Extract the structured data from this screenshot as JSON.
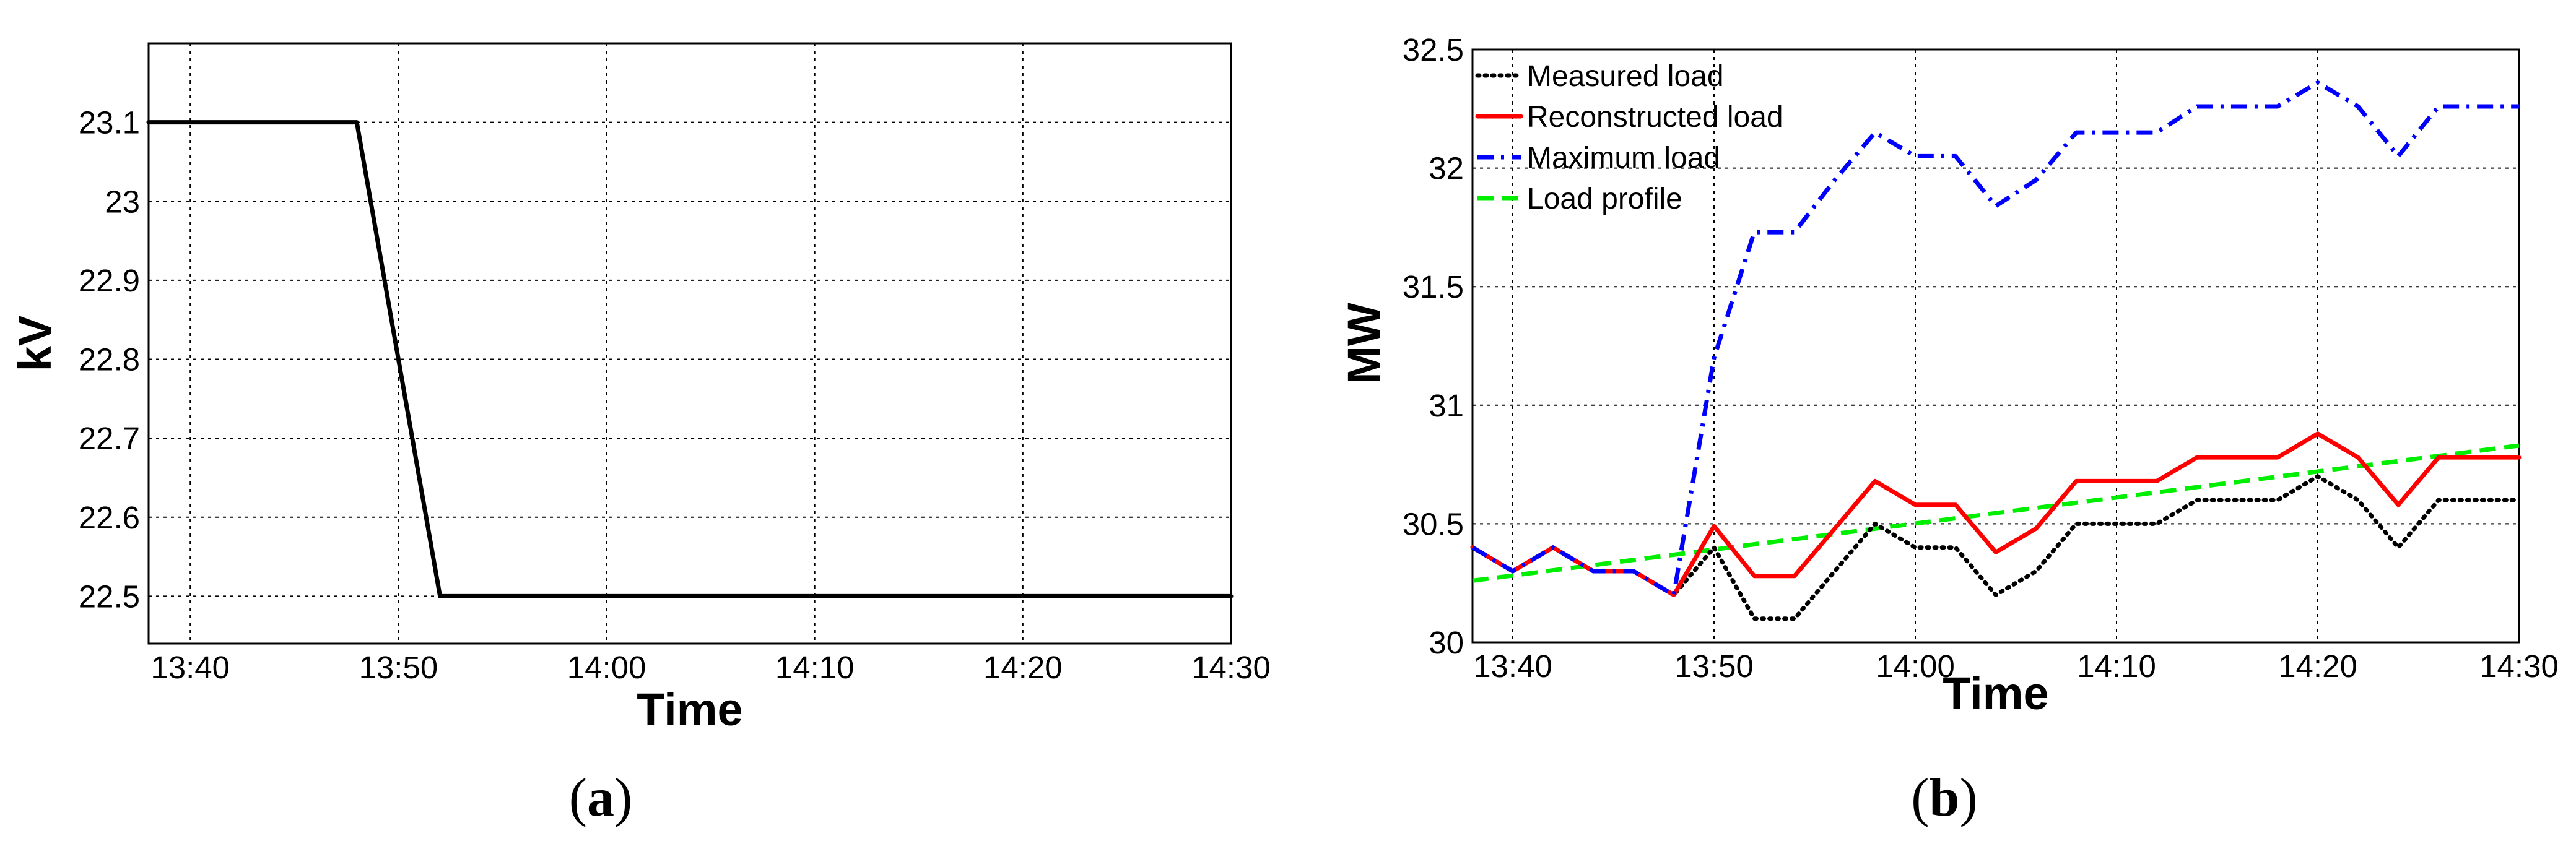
{
  "chart_data": [
    {
      "type": "line",
      "panel": {
        "prefix": "(",
        "letter": "a",
        "suffix": ")"
      },
      "title": "",
      "xlabel": "Time",
      "ylabel": "kV",
      "x_ticks": [
        "13:40",
        "13:50",
        "14:00",
        "14:10",
        "14:20",
        "14:30"
      ],
      "y_ticks": [
        "22.5",
        "22.6",
        "22.7",
        "22.8",
        "22.9",
        "23",
        "23.1"
      ],
      "xlim": [
        "13:38",
        "14:30"
      ],
      "ylim": [
        22.44,
        23.2
      ],
      "grid": true,
      "legend": null,
      "series": [
        {
          "color": "#000000",
          "style": "solid",
          "points": [
            [
              "13:38",
              23.1
            ],
            [
              "13:48",
              23.1
            ],
            [
              "13:52",
              22.5
            ],
            [
              "14:30",
              22.5
            ]
          ]
        }
      ]
    },
    {
      "type": "line",
      "panel": {
        "prefix": "(",
        "letter": "b",
        "suffix": ")"
      },
      "title": "",
      "xlabel": "Time",
      "ylabel": "MW",
      "x_ticks": [
        "13:40",
        "13:50",
        "14:00",
        "14:10",
        "14:20",
        "14:30"
      ],
      "y_ticks": [
        "30",
        "30.5",
        "31",
        "31.5",
        "32",
        "32.5"
      ],
      "xlim": [
        "13:38",
        "14:30"
      ],
      "ylim": [
        30,
        32.5
      ],
      "grid": true,
      "legend": "top-left",
      "series": [
        {
          "name": "Measured load",
          "color": "#000000",
          "style": "dotted",
          "points": [
            [
              "13:38",
              30.4
            ],
            [
              "13:40",
              30.3
            ],
            [
              "13:42",
              30.4
            ],
            [
              "13:44",
              30.3
            ],
            [
              "13:46",
              30.3
            ],
            [
              "13:48",
              30.2
            ],
            [
              "13:50",
              30.4
            ],
            [
              "13:52",
              30.1
            ],
            [
              "13:54",
              30.1
            ],
            [
              "13:56",
              30.3
            ],
            [
              "13:58",
              30.5
            ],
            [
              "14:00",
              30.4
            ],
            [
              "14:02",
              30.4
            ],
            [
              "14:04",
              30.2
            ],
            [
              "14:06",
              30.3
            ],
            [
              "14:08",
              30.5
            ],
            [
              "14:10",
              30.5
            ],
            [
              "14:12",
              30.5
            ],
            [
              "14:14",
              30.6
            ],
            [
              "14:16",
              30.6
            ],
            [
              "14:18",
              30.6
            ],
            [
              "14:20",
              30.7
            ],
            [
              "14:22",
              30.6
            ],
            [
              "14:24",
              30.4
            ],
            [
              "14:26",
              30.6
            ],
            [
              "14:28",
              30.6
            ],
            [
              "14:30",
              30.6
            ]
          ]
        },
        {
          "name": "Reconstructed load",
          "color": "#ff0000",
          "style": "solid",
          "points": [
            [
              "13:38",
              30.4
            ],
            [
              "13:40",
              30.3
            ],
            [
              "13:42",
              30.4
            ],
            [
              "13:44",
              30.3
            ],
            [
              "13:46",
              30.3
            ],
            [
              "13:48",
              30.2
            ],
            [
              "13:50",
              30.49
            ],
            [
              "13:52",
              30.28
            ],
            [
              "13:54",
              30.28
            ],
            [
              "13:56",
              30.48
            ],
            [
              "13:58",
              30.68
            ],
            [
              "14:00",
              30.58
            ],
            [
              "14:02",
              30.58
            ],
            [
              "14:04",
              30.38
            ],
            [
              "14:06",
              30.48
            ],
            [
              "14:08",
              30.68
            ],
            [
              "14:10",
              30.68
            ],
            [
              "14:12",
              30.68
            ],
            [
              "14:14",
              30.78
            ],
            [
              "14:16",
              30.78
            ],
            [
              "14:18",
              30.78
            ],
            [
              "14:20",
              30.88
            ],
            [
              "14:22",
              30.78
            ],
            [
              "14:24",
              30.58
            ],
            [
              "14:26",
              30.78
            ],
            [
              "14:28",
              30.78
            ],
            [
              "14:30",
              30.78
            ]
          ]
        },
        {
          "name": "Maximum load",
          "color": "#0000ff",
          "style": "dashdot",
          "points": [
            [
              "13:38",
              30.4
            ],
            [
              "13:40",
              30.3
            ],
            [
              "13:42",
              30.4
            ],
            [
              "13:44",
              30.3
            ],
            [
              "13:46",
              30.3
            ],
            [
              "13:48",
              30.2
            ],
            [
              "13:50",
              31.2
            ],
            [
              "13:52",
              31.73
            ],
            [
              "13:54",
              31.73
            ],
            [
              "13:56",
              31.95
            ],
            [
              "13:58",
              32.15
            ],
            [
              "14:00",
              32.05
            ],
            [
              "14:02",
              32.05
            ],
            [
              "14:04",
              31.84
            ],
            [
              "14:06",
              31.95
            ],
            [
              "14:08",
              32.15
            ],
            [
              "14:10",
              32.15
            ],
            [
              "14:12",
              32.15
            ],
            [
              "14:14",
              32.26
            ],
            [
              "14:16",
              32.26
            ],
            [
              "14:18",
              32.26
            ],
            [
              "14:20",
              32.36
            ],
            [
              "14:22",
              32.26
            ],
            [
              "14:24",
              32.05
            ],
            [
              "14:26",
              32.26
            ],
            [
              "14:28",
              32.26
            ],
            [
              "14:30",
              32.26
            ]
          ]
        },
        {
          "name": "Load profile",
          "color": "#00ee00",
          "style": "dashed",
          "points": [
            [
              "13:38",
              30.26
            ],
            [
              "14:30",
              30.83
            ]
          ]
        }
      ]
    }
  ]
}
